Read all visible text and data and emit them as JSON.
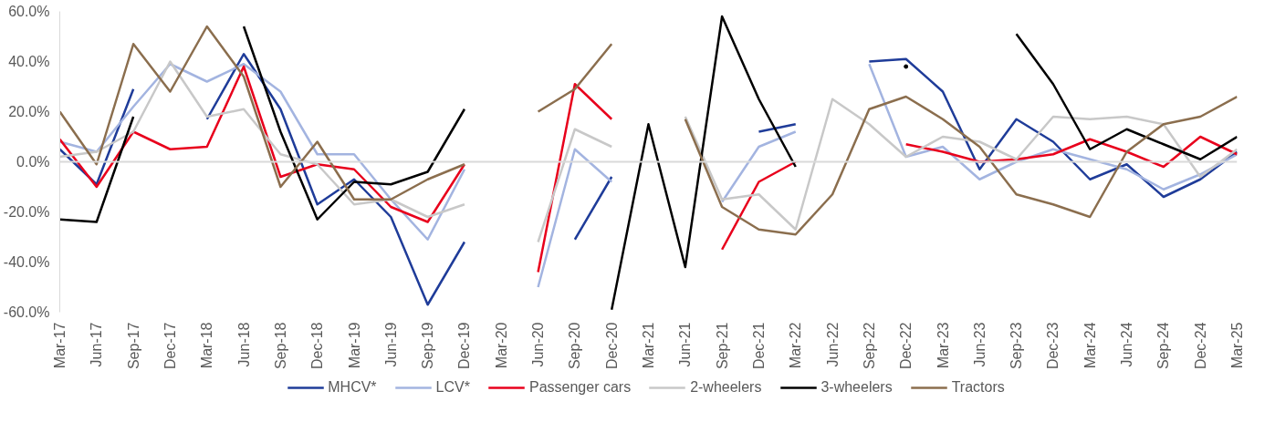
{
  "chart_data": {
    "type": "line",
    "line_style": "solid",
    "marker": "none",
    "grid": false,
    "legend": "bottom",
    "x": [
      "2017-03",
      "2017-06",
      "2017-09",
      "2017-12",
      "2018-03",
      "2018-06",
      "2018-09",
      "2018-12",
      "2019-03",
      "2019-06",
      "2019-09",
      "2019-12",
      "2020-03",
      "2020-06",
      "2020-09",
      "2020-12",
      "2021-03",
      "2021-06",
      "2021-09",
      "2021-12",
      "2022-03",
      "2022-06",
      "2022-09",
      "2022-12",
      "2023-03",
      "2023-06",
      "2023-09",
      "2023-12",
      "2024-03",
      "2024-06",
      "2024-09",
      "2024-12",
      "2025-03"
    ],
    "xlim": [
      "2017-03",
      "2025-03"
    ],
    "xticks": [
      {
        "value": "2017-03",
        "label": "Mar-17"
      },
      {
        "value": "2017-06",
        "label": "Jun-17"
      },
      {
        "value": "2017-09",
        "label": "Sep-17"
      },
      {
        "value": "2017-12",
        "label": "Dec-17"
      },
      {
        "value": "2018-03",
        "label": "Mar-18"
      },
      {
        "value": "2018-06",
        "label": "Jun-18"
      },
      {
        "value": "2018-09",
        "label": "Sep-18"
      },
      {
        "value": "2018-12",
        "label": "Dec-18"
      },
      {
        "value": "2019-03",
        "label": "Mar-19"
      },
      {
        "value": "2019-06",
        "label": "Jun-19"
      },
      {
        "value": "2019-09",
        "label": "Sep-19"
      },
      {
        "value": "2019-12",
        "label": "Dec-19"
      },
      {
        "value": "2020-03",
        "label": "Mar-20"
      },
      {
        "value": "2020-06",
        "label": "Jun-20"
      },
      {
        "value": "2020-09",
        "label": "Sep-20"
      },
      {
        "value": "2020-12",
        "label": "Dec-20"
      },
      {
        "value": "2021-03",
        "label": "Mar-21"
      },
      {
        "value": "2021-06",
        "label": "Jun-21"
      },
      {
        "value": "2021-09",
        "label": "Sep-21"
      },
      {
        "value": "2021-12",
        "label": "Dec-21"
      },
      {
        "value": "2022-03",
        "label": "Mar-22"
      },
      {
        "value": "2022-06",
        "label": "Jun-22"
      },
      {
        "value": "2022-09",
        "label": "Sep-22"
      },
      {
        "value": "2022-12",
        "label": "Dec-22"
      },
      {
        "value": "2023-03",
        "label": "Mar-23"
      },
      {
        "value": "2023-06",
        "label": "Jun-23"
      },
      {
        "value": "2023-09",
        "label": "Sep-23"
      },
      {
        "value": "2023-12",
        "label": "Dec-23"
      },
      {
        "value": "2024-03",
        "label": "Mar-24"
      },
      {
        "value": "2024-06",
        "label": "Jun-24"
      },
      {
        "value": "2024-09",
        "label": "Sep-24"
      },
      {
        "value": "2024-12",
        "label": "Dec-24"
      },
      {
        "value": "2025-03",
        "label": "Mar-25"
      }
    ],
    "ylim": [
      -60,
      60
    ],
    "yticks": [
      {
        "value": -60,
        "label": "-60.0%"
      },
      {
        "value": -40,
        "label": "-40.0%"
      },
      {
        "value": -20,
        "label": "-20.0%"
      },
      {
        "value": 0,
        "label": "0.0%"
      },
      {
        "value": 20,
        "label": "20.0%"
      },
      {
        "value": 40,
        "label": "40.0%"
      },
      {
        "value": 60,
        "label": "60.0%"
      }
    ],
    "ref_lines": [
      {
        "axis": "y",
        "value": 0,
        "color": "#d9d9d9"
      }
    ],
    "series": [
      {
        "name": "MHCV*",
        "color": "#1f3c99",
        "values": [
          5,
          -9,
          29,
          null,
          17,
          43,
          21,
          -17,
          -7,
          -22,
          -57,
          -32,
          null,
          null,
          -31,
          -6,
          null,
          null,
          null,
          12,
          15,
          null,
          40,
          41,
          28,
          -3,
          17,
          8,
          -7,
          -1,
          -14,
          -7,
          4
        ]
      },
      {
        "name": "LCV*",
        "color": "#a3b4e0",
        "values": [
          8,
          4,
          22,
          39,
          32,
          39,
          28,
          3,
          3,
          -15,
          -31,
          -3,
          null,
          -50,
          5,
          -8,
          null,
          null,
          -16,
          6,
          12,
          null,
          39,
          2,
          6,
          -7,
          0,
          5,
          1,
          -3,
          -11,
          -5,
          3
        ]
      },
      {
        "name": "Passenger cars",
        "color": "#e8001c",
        "values": [
          9,
          -10,
          12,
          5,
          6,
          38,
          -6,
          -1,
          -3,
          -18,
          -24,
          -1,
          null,
          -44,
          31,
          17,
          null,
          null,
          -35,
          -8,
          0,
          null,
          null,
          7,
          4,
          0,
          1,
          3,
          9,
          4,
          -2,
          10,
          3
        ]
      },
      {
        "name": "2-wheelers",
        "color": "#c8c8c8",
        "values": [
          2,
          4,
          12,
          40,
          18,
          21,
          3,
          -1,
          -17,
          -15,
          -22,
          -17,
          null,
          -32,
          13,
          6,
          null,
          18,
          -15,
          -13,
          -27,
          25,
          15,
          2,
          10,
          8,
          1,
          18,
          17,
          18,
          15,
          -6,
          5
        ]
      },
      {
        "name": "3-wheelers",
        "color": "#000000",
        "values": [
          -23,
          -24,
          18,
          null,
          null,
          54,
          12,
          -23,
          -8,
          -9,
          -4,
          21,
          null,
          null,
          null,
          -59,
          15,
          -42,
          58,
          25,
          -2,
          null,
          null,
          38,
          null,
          null,
          51,
          31,
          5,
          13,
          7,
          1,
          10
        ]
      },
      {
        "name": "Tractors",
        "color": "#8b6e4e",
        "values": [
          20,
          -1,
          47,
          28,
          54,
          34,
          -10,
          8,
          -15,
          -15,
          -7,
          -1,
          null,
          20,
          29,
          47,
          null,
          17,
          -18,
          -27,
          -29,
          -13,
          21,
          26,
          17,
          6,
          -13,
          -17,
          -22,
          4,
          15,
          18,
          26
        ]
      }
    ]
  }
}
